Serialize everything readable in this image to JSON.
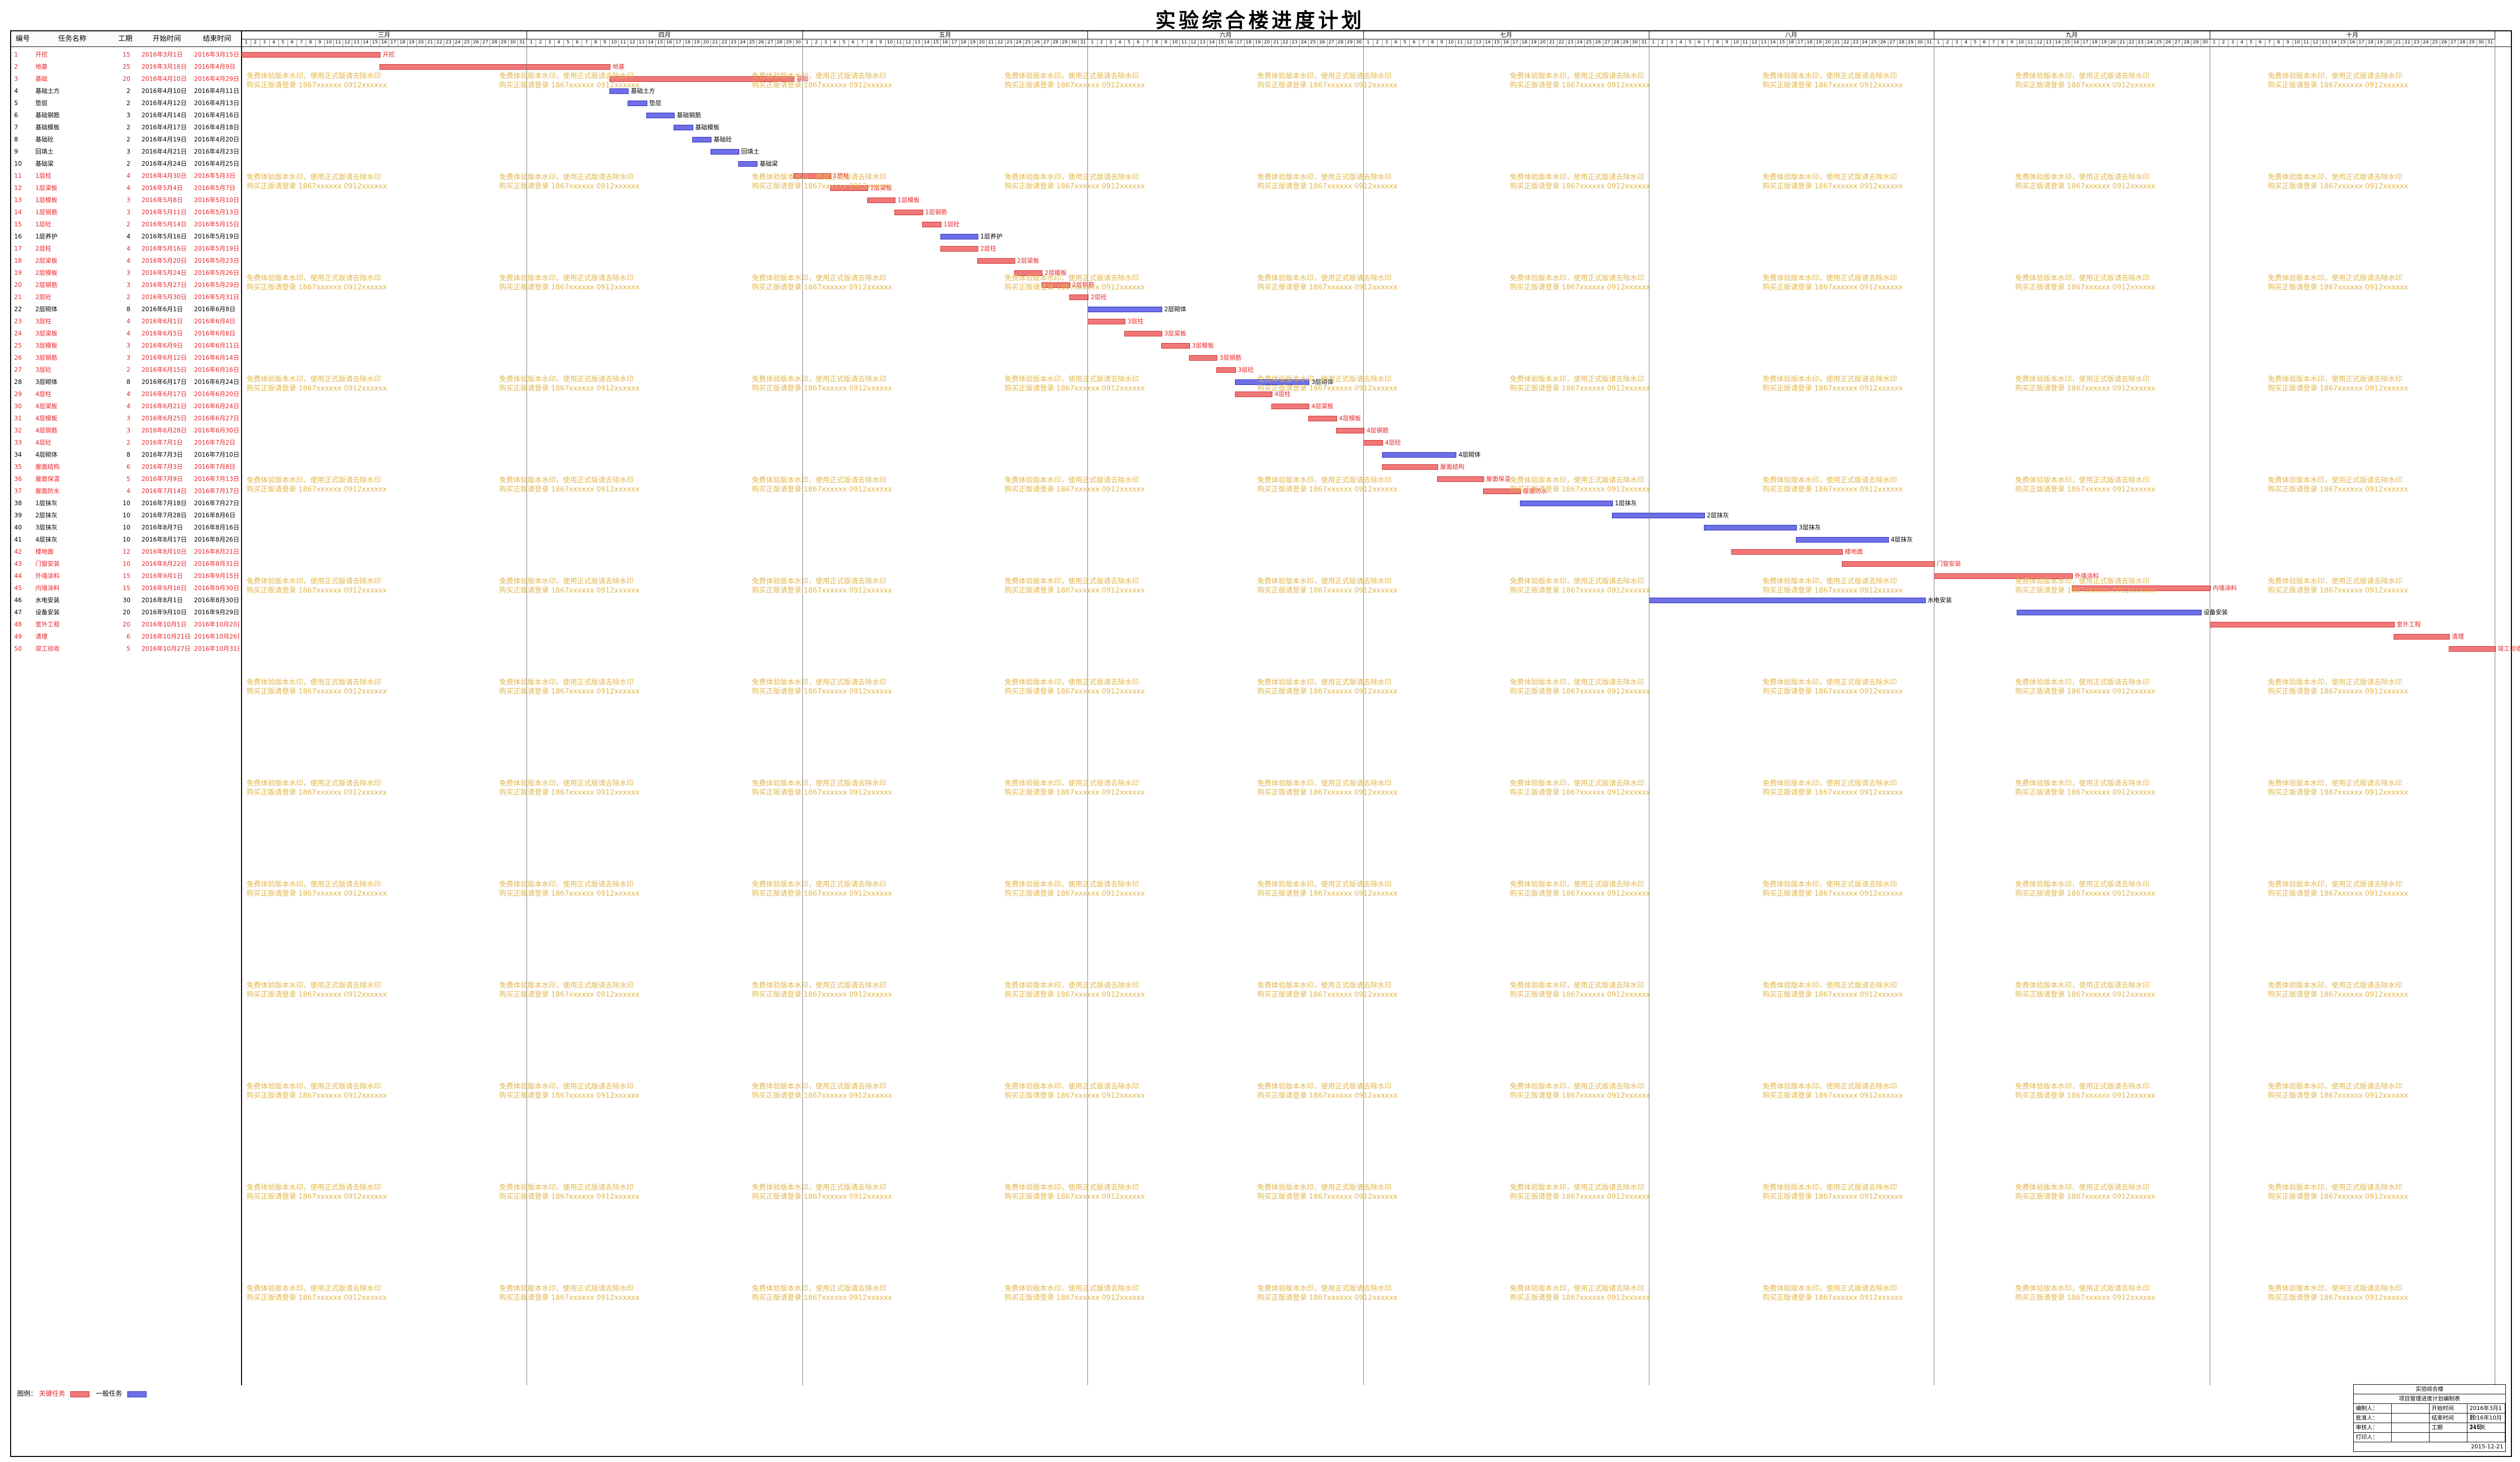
{
  "title": "实验综合楼进度计划",
  "columns": [
    "编号",
    "任务名称",
    "工期",
    "开始时间",
    "结束时间"
  ],
  "months": [
    "三月",
    "四月",
    "五月",
    "六月",
    "七月",
    "八月",
    "九月",
    "十月"
  ],
  "watermark": [
    "免费体验版本水印，使用正式版请去除水印",
    "购买正版请登录 1867xxxxxx 0912xxxxxx"
  ],
  "legend": {
    "prefix": "图例：",
    "critical": "关键任务",
    "normal": "一般任务"
  },
  "footer": {
    "project": "实验综合楼",
    "subtitle": "项目管理进度计划编制表",
    "rows": [
      [
        "编制人：",
        "",
        "开始时间",
        "2016年3月1日"
      ],
      [
        "批准人：",
        "",
        "结束时间",
        "2016年10月31日"
      ],
      [
        "审核人：",
        "",
        "工期",
        "245天"
      ],
      [
        "打印人：",
        "",
        "",
        ""
      ]
    ],
    "date": "2015-12-21"
  },
  "colors": {
    "critical": "#e8252a",
    "normal": "#3b3bd0",
    "watermark": "#e2b64a"
  },
  "chart_data": {
    "type": "gantt",
    "start": "2016-03-01",
    "tasks": [
      {
        "id": "1",
        "name": "开挖",
        "dur": "15",
        "start": "2016年3月1日",
        "end": "2016年3月15日",
        "critical": true,
        "s": 0,
        "d": 15
      },
      {
        "id": "2",
        "name": "地基",
        "dur": "25",
        "start": "2016年3月16日",
        "end": "2016年4月9日",
        "critical": true,
        "s": 15,
        "d": 25
      },
      {
        "id": "3",
        "name": "基础",
        "dur": "20",
        "start": "2016年4月10日",
        "end": "2016年4月29日",
        "critical": true,
        "s": 40,
        "d": 20
      },
      {
        "id": "4",
        "name": "基础土方",
        "dur": "2",
        "start": "2016年4月10日",
        "end": "2016年4月11日",
        "critical": false,
        "s": 40,
        "d": 2
      },
      {
        "id": "5",
        "name": "垫层",
        "dur": "2",
        "start": "2016年4月12日",
        "end": "2016年4月13日",
        "critical": false,
        "s": 42,
        "d": 2
      },
      {
        "id": "6",
        "name": "基础钢筋",
        "dur": "3",
        "start": "2016年4月14日",
        "end": "2016年4月16日",
        "critical": false,
        "s": 44,
        "d": 3
      },
      {
        "id": "7",
        "name": "基础模板",
        "dur": "2",
        "start": "2016年4月17日",
        "end": "2016年4月18日",
        "critical": false,
        "s": 47,
        "d": 2
      },
      {
        "id": "8",
        "name": "基础砼",
        "dur": "2",
        "start": "2016年4月19日",
        "end": "2016年4月20日",
        "critical": false,
        "s": 49,
        "d": 2
      },
      {
        "id": "9",
        "name": "回填土",
        "dur": "3",
        "start": "2016年4月21日",
        "end": "2016年4月23日",
        "critical": false,
        "s": 51,
        "d": 3
      },
      {
        "id": "10",
        "name": "基础梁",
        "dur": "2",
        "start": "2016年4月24日",
        "end": "2016年4月25日",
        "critical": false,
        "s": 54,
        "d": 2
      },
      {
        "id": "11",
        "name": "1层柱",
        "dur": "4",
        "start": "2016年4月30日",
        "end": "2016年5月3日",
        "critical": true,
        "s": 60,
        "d": 4
      },
      {
        "id": "12",
        "name": "1层梁板",
        "dur": "4",
        "start": "2016年5月4日",
        "end": "2016年5月7日",
        "critical": true,
        "s": 64,
        "d": 4
      },
      {
        "id": "13",
        "name": "1层模板",
        "dur": "3",
        "start": "2016年5月8日",
        "end": "2016年5月10日",
        "critical": true,
        "s": 68,
        "d": 3
      },
      {
        "id": "14",
        "name": "1层钢筋",
        "dur": "3",
        "start": "2016年5月11日",
        "end": "2016年5月13日",
        "critical": true,
        "s": 71,
        "d": 3
      },
      {
        "id": "15",
        "name": "1层砼",
        "dur": "2",
        "start": "2016年5月14日",
        "end": "2016年5月15日",
        "critical": true,
        "s": 74,
        "d": 2
      },
      {
        "id": "16",
        "name": "1层养护",
        "dur": "4",
        "start": "2016年5月16日",
        "end": "2016年5月19日",
        "critical": false,
        "s": 76,
        "d": 4
      },
      {
        "id": "17",
        "name": "2层柱",
        "dur": "4",
        "start": "2016年5月16日",
        "end": "2016年5月19日",
        "critical": true,
        "s": 76,
        "d": 4
      },
      {
        "id": "18",
        "name": "2层梁板",
        "dur": "4",
        "start": "2016年5月20日",
        "end": "2016年5月23日",
        "critical": true,
        "s": 80,
        "d": 4
      },
      {
        "id": "19",
        "name": "2层模板",
        "dur": "3",
        "start": "2016年5月24日",
        "end": "2016年5月26日",
        "critical": true,
        "s": 84,
        "d": 3
      },
      {
        "id": "20",
        "name": "2层钢筋",
        "dur": "3",
        "start": "2016年5月27日",
        "end": "2016年5月29日",
        "critical": true,
        "s": 87,
        "d": 3
      },
      {
        "id": "21",
        "name": "2层砼",
        "dur": "2",
        "start": "2016年5月30日",
        "end": "2016年5月31日",
        "critical": true,
        "s": 90,
        "d": 2
      },
      {
        "id": "22",
        "name": "2层砌体",
        "dur": "8",
        "start": "2016年6月1日",
        "end": "2016年6月8日",
        "critical": false,
        "s": 92,
        "d": 8
      },
      {
        "id": "23",
        "name": "3层柱",
        "dur": "4",
        "start": "2016年6月1日",
        "end": "2016年6月4日",
        "critical": true,
        "s": 92,
        "d": 4
      },
      {
        "id": "24",
        "name": "3层梁板",
        "dur": "4",
        "start": "2016年6月5日",
        "end": "2016年6月8日",
        "critical": true,
        "s": 96,
        "d": 4
      },
      {
        "id": "25",
        "name": "3层模板",
        "dur": "3",
        "start": "2016年6月9日",
        "end": "2016年6月11日",
        "critical": true,
        "s": 100,
        "d": 3
      },
      {
        "id": "26",
        "name": "3层钢筋",
        "dur": "3",
        "start": "2016年6月12日",
        "end": "2016年6月14日",
        "critical": true,
        "s": 103,
        "d": 3
      },
      {
        "id": "27",
        "name": "3层砼",
        "dur": "2",
        "start": "2016年6月15日",
        "end": "2016年6月16日",
        "critical": true,
        "s": 106,
        "d": 2
      },
      {
        "id": "28",
        "name": "3层砌体",
        "dur": "8",
        "start": "2016年6月17日",
        "end": "2016年6月24日",
        "critical": false,
        "s": 108,
        "d": 8
      },
      {
        "id": "29",
        "name": "4层柱",
        "dur": "4",
        "start": "2016年6月17日",
        "end": "2016年6月20日",
        "critical": true,
        "s": 108,
        "d": 4
      },
      {
        "id": "30",
        "name": "4层梁板",
        "dur": "4",
        "start": "2016年6月21日",
        "end": "2016年6月24日",
        "critical": true,
        "s": 112,
        "d": 4
      },
      {
        "id": "31",
        "name": "4层模板",
        "dur": "3",
        "start": "2016年6月25日",
        "end": "2016年6月27日",
        "critical": true,
        "s": 116,
        "d": 3
      },
      {
        "id": "32",
        "name": "4层钢筋",
        "dur": "3",
        "start": "2016年6月28日",
        "end": "2016年6月30日",
        "critical": true,
        "s": 119,
        "d": 3
      },
      {
        "id": "33",
        "name": "4层砼",
        "dur": "2",
        "start": "2016年7月1日",
        "end": "2016年7月2日",
        "critical": true,
        "s": 122,
        "d": 2
      },
      {
        "id": "34",
        "name": "4层砌体",
        "dur": "8",
        "start": "2016年7月3日",
        "end": "2016年7月10日",
        "critical": false,
        "s": 124,
        "d": 8
      },
      {
        "id": "35",
        "name": "屋面结构",
        "dur": "6",
        "start": "2016年7月3日",
        "end": "2016年7月8日",
        "critical": true,
        "s": 124,
        "d": 6
      },
      {
        "id": "36",
        "name": "屋面保温",
        "dur": "5",
        "start": "2016年7月9日",
        "end": "2016年7月13日",
        "critical": true,
        "s": 130,
        "d": 5
      },
      {
        "id": "37",
        "name": "屋面防水",
        "dur": "4",
        "start": "2016年7月14日",
        "end": "2016年7月17日",
        "critical": true,
        "s": 135,
        "d": 4
      },
      {
        "id": "38",
        "name": "1层抹灰",
        "dur": "10",
        "start": "2016年7月18日",
        "end": "2016年7月27日",
        "critical": false,
        "s": 139,
        "d": 10
      },
      {
        "id": "39",
        "name": "2层抹灰",
        "dur": "10",
        "start": "2016年7月28日",
        "end": "2016年8月6日",
        "critical": false,
        "s": 149,
        "d": 10
      },
      {
        "id": "40",
        "name": "3层抹灰",
        "dur": "10",
        "start": "2016年8月7日",
        "end": "2016年8月16日",
        "critical": false,
        "s": 159,
        "d": 10
      },
      {
        "id": "41",
        "name": "4层抹灰",
        "dur": "10",
        "start": "2016年8月17日",
        "end": "2016年8月26日",
        "critical": false,
        "s": 169,
        "d": 10
      },
      {
        "id": "42",
        "name": "楼地面",
        "dur": "12",
        "start": "2016年8月10日",
        "end": "2016年8月21日",
        "critical": true,
        "s": 162,
        "d": 12
      },
      {
        "id": "43",
        "name": "门窗安装",
        "dur": "10",
        "start": "2016年8月22日",
        "end": "2016年8月31日",
        "critical": true,
        "s": 174,
        "d": 10
      },
      {
        "id": "44",
        "name": "外墙涂料",
        "dur": "15",
        "start": "2016年9月1日",
        "end": "2016年9月15日",
        "critical": true,
        "s": 184,
        "d": 15
      },
      {
        "id": "45",
        "name": "内墙涂料",
        "dur": "15",
        "start": "2016年9月16日",
        "end": "2016年9月30日",
        "critical": true,
        "s": 199,
        "d": 15
      },
      {
        "id": "46",
        "name": "水电安装",
        "dur": "30",
        "start": "2016年8月1日",
        "end": "2016年8月30日",
        "critical": false,
        "s": 153,
        "d": 30
      },
      {
        "id": "47",
        "name": "设备安装",
        "dur": "20",
        "start": "2016年9月10日",
        "end": "2016年9月29日",
        "critical": false,
        "s": 193,
        "d": 20
      },
      {
        "id": "48",
        "name": "室外工程",
        "dur": "20",
        "start": "2016年10月1日",
        "end": "2016年10月20日",
        "critical": true,
        "s": 214,
        "d": 20
      },
      {
        "id": "49",
        "name": "清理",
        "dur": "6",
        "start": "2016年10月21日",
        "end": "2016年10月26日",
        "critical": true,
        "s": 234,
        "d": 6
      },
      {
        "id": "50",
        "name": "竣工验收",
        "dur": "5",
        "start": "2016年10月27日",
        "end": "2016年10月31日",
        "critical": true,
        "s": 240,
        "d": 5
      }
    ]
  }
}
